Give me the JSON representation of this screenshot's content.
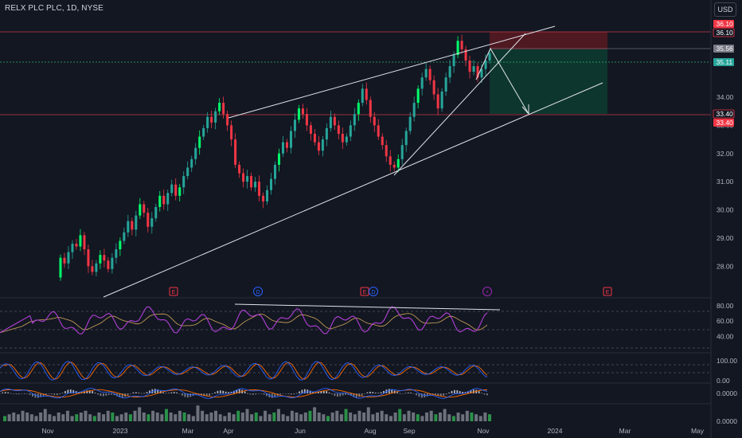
{
  "header": {
    "symbol": "RELX PLC PLC, 1D, NYSE",
    "currency": "USD"
  },
  "colors": {
    "background": "#131722",
    "up": "#26a69a",
    "up_bright": "#00ff6a",
    "down": "#f23645",
    "line": "#e0e3eb",
    "resistance_line": "#e0414b",
    "entry_line": "#2bb673",
    "stop_zone": "#5a1a22",
    "target_zone": "#0d3a30",
    "rsi": "#b23fd8",
    "rsi_ma": "#d1a65a",
    "stoch_k": "#2962ff",
    "stoch_d": "#ff6d00",
    "macd": "#2962ff",
    "macd_signal": "#ff6d00",
    "volume_up": "#2e9e4c",
    "volume_neutral": "#787b86",
    "grid_dash": "#434651",
    "axis_text": "#b2b5be",
    "event_earnings": "#f23645",
    "event_dividend": "#2962ff",
    "event_split": "#9c27b0"
  },
  "price_axis": {
    "ticks": [
      "34.00",
      "33.00",
      "32.00",
      "31.00",
      "30.00",
      "29.00",
      "28.00"
    ],
    "badges": [
      {
        "label": "36.10",
        "style": "red-solid"
      },
      {
        "label": "36.10",
        "style": "red-outline"
      },
      {
        "label": "35.56",
        "style": "gray"
      },
      {
        "label": "35.11",
        "style": "green"
      },
      {
        "label": "33.40",
        "style": "red-outline"
      },
      {
        "label": "33.40",
        "style": "red-solid"
      }
    ]
  },
  "time_axis": {
    "labels": [
      "Nov",
      "2023",
      "Mar",
      "Apr",
      "Jun",
      "Aug",
      "Sep",
      "Nov",
      "2024",
      "Mar",
      "May"
    ]
  },
  "events": [
    {
      "letter": "E",
      "kind": "earnings"
    },
    {
      "letter": "D",
      "kind": "dividend"
    },
    {
      "letter": "E",
      "kind": "earnings"
    },
    {
      "letter": "D",
      "kind": "dividend"
    },
    {
      "letter": "⚡",
      "kind": "split"
    },
    {
      "letter": "E",
      "kind": "earnings-future"
    }
  ],
  "indicators": {
    "rsi_ticks": [
      "80.00",
      "60.00",
      "40.00"
    ],
    "stoch_ticks": [
      "100.00",
      "0.00"
    ],
    "macd_ticks": [
      "0.0000"
    ],
    "volume_ticks": [
      "0.0000"
    ]
  },
  "chart_data": {
    "type": "candlestick",
    "yrange": [
      27.5,
      36.6
    ],
    "levels": {
      "resistance": 36.1,
      "last_price": 35.56,
      "entry": 35.11,
      "target": 33.4
    },
    "ohlc": [
      [
        27.6,
        28.3
      ],
      [
        28.3,
        28.1
      ],
      [
        28.1,
        28.5
      ],
      [
        28.5,
        28.8
      ],
      [
        28.8,
        28.7
      ],
      [
        28.7,
        29.1
      ],
      [
        29.1,
        28.6
      ],
      [
        28.6,
        28.0
      ],
      [
        28.0,
        27.8
      ],
      [
        27.8,
        28.1
      ],
      [
        28.1,
        28.4
      ],
      [
        28.4,
        28.2
      ],
      [
        28.2,
        27.9
      ],
      [
        27.9,
        28.3
      ],
      [
        28.3,
        28.6
      ],
      [
        28.6,
        28.9
      ],
      [
        28.9,
        29.2
      ],
      [
        29.2,
        29.6
      ],
      [
        29.6,
        29.3
      ],
      [
        29.3,
        29.8
      ],
      [
        29.8,
        30.2
      ],
      [
        30.2,
        29.9
      ],
      [
        29.9,
        29.4
      ],
      [
        29.4,
        29.7
      ],
      [
        29.7,
        30.1
      ],
      [
        30.1,
        30.5
      ],
      [
        30.5,
        30.2
      ],
      [
        30.2,
        30.6
      ],
      [
        30.6,
        30.9
      ],
      [
        30.9,
        30.5
      ],
      [
        30.5,
        30.8
      ],
      [
        30.8,
        31.2
      ],
      [
        31.2,
        31.5
      ],
      [
        31.5,
        31.8
      ],
      [
        31.8,
        32.2
      ],
      [
        32.2,
        32.6
      ],
      [
        32.6,
        32.9
      ],
      [
        32.9,
        33.3
      ],
      [
        33.3,
        33.1
      ],
      [
        33.1,
        33.5
      ],
      [
        33.5,
        33.8
      ],
      [
        33.8,
        33.4
      ],
      [
        33.4,
        33.0
      ],
      [
        33.0,
        32.5
      ],
      [
        32.5,
        31.6
      ],
      [
        31.6,
        31.3
      ],
      [
        31.3,
        31.0
      ],
      [
        31.0,
        31.2
      ],
      [
        31.2,
        30.8
      ],
      [
        30.8,
        31.0
      ],
      [
        31.0,
        30.5
      ],
      [
        30.5,
        30.3
      ],
      [
        30.3,
        30.7
      ],
      [
        30.7,
        31.1
      ],
      [
        31.1,
        31.6
      ],
      [
        31.6,
        32.0
      ],
      [
        32.0,
        32.4
      ],
      [
        32.4,
        32.2
      ],
      [
        32.2,
        32.8
      ],
      [
        32.8,
        33.2
      ],
      [
        33.2,
        33.6
      ],
      [
        33.6,
        33.4
      ],
      [
        33.4,
        33.0
      ],
      [
        33.0,
        32.7
      ],
      [
        32.7,
        32.4
      ],
      [
        32.4,
        32.1
      ],
      [
        32.1,
        32.5
      ],
      [
        32.5,
        32.9
      ],
      [
        32.9,
        33.3
      ],
      [
        33.3,
        33.0
      ],
      [
        33.0,
        32.7
      ],
      [
        32.7,
        32.4
      ],
      [
        32.4,
        32.6
      ],
      [
        32.6,
        33.0
      ],
      [
        33.0,
        33.4
      ],
      [
        33.4,
        33.8
      ],
      [
        33.8,
        34.3
      ],
      [
        34.3,
        33.9
      ],
      [
        33.9,
        33.3
      ],
      [
        33.3,
        33.0
      ],
      [
        33.0,
        32.6
      ],
      [
        32.6,
        32.3
      ],
      [
        32.3,
        31.9
      ],
      [
        31.9,
        31.6
      ],
      [
        31.6,
        31.5
      ],
      [
        31.5,
        31.8
      ],
      [
        31.8,
        32.3
      ],
      [
        32.3,
        32.8
      ],
      [
        32.8,
        33.3
      ],
      [
        33.3,
        33.8
      ],
      [
        33.8,
        34.3
      ],
      [
        34.3,
        34.7
      ],
      [
        34.7,
        35.0
      ],
      [
        35.0,
        34.6
      ],
      [
        34.6,
        34.1
      ],
      [
        34.1,
        33.6
      ],
      [
        33.6,
        34.2
      ],
      [
        34.2,
        34.7
      ],
      [
        34.7,
        35.1
      ],
      [
        35.1,
        35.5
      ],
      [
        35.5,
        36.0
      ],
      [
        36.0,
        35.7
      ],
      [
        35.7,
        35.3
      ],
      [
        35.3,
        34.9
      ],
      [
        34.9,
        35.1
      ],
      [
        35.1,
        34.7
      ],
      [
        34.7,
        35.0
      ],
      [
        35.0,
        35.3
      ],
      [
        35.3,
        35.56
      ]
    ],
    "volume": [
      3,
      4,
      5,
      4,
      6,
      5,
      4,
      3,
      5,
      7,
      4,
      3,
      5,
      4,
      6,
      3,
      4,
      5,
      6,
      4,
      3,
      5,
      4,
      6,
      5,
      3,
      4,
      5,
      4,
      6,
      8,
      5,
      4,
      6,
      5,
      4,
      7,
      5,
      4,
      6,
      5,
      4,
      3,
      9,
      6,
      4,
      5,
      6,
      4,
      3,
      5,
      4,
      6,
      5,
      7,
      4,
      5,
      3,
      6,
      4,
      5,
      7,
      4,
      3,
      6,
      5,
      4,
      5,
      6,
      8,
      5,
      4,
      3,
      5,
      6,
      4,
      7,
      5,
      4,
      6,
      5,
      8,
      4,
      5,
      6,
      4,
      3,
      5,
      7,
      4,
      6,
      5,
      4,
      3,
      5,
      6,
      4,
      5,
      7,
      4,
      3,
      5,
      4,
      6,
      5,
      4,
      3,
      5,
      4
    ]
  }
}
